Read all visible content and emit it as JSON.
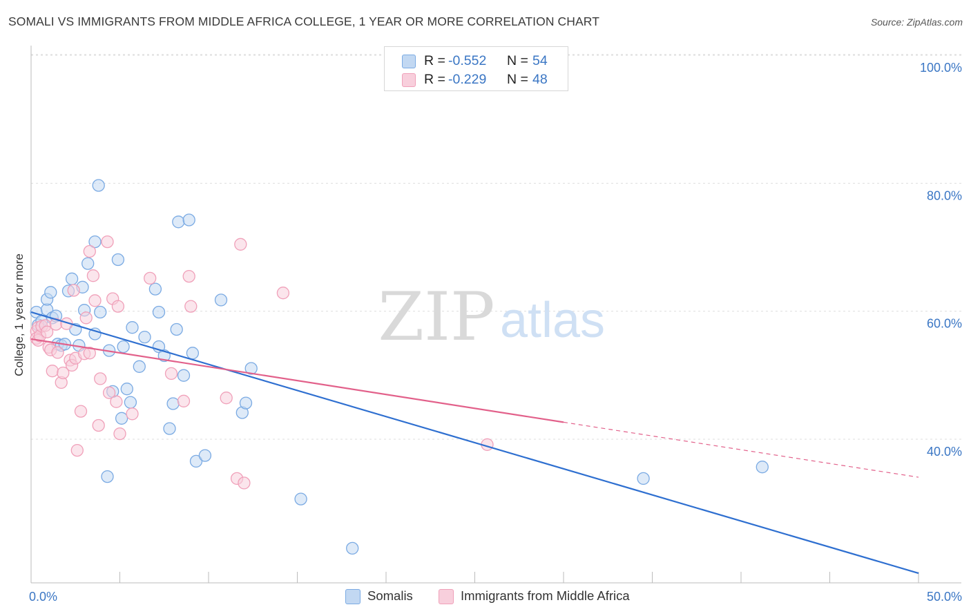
{
  "chart_data": {
    "type": "scatter",
    "title": "SOMALI VS IMMIGRANTS FROM MIDDLE AFRICA COLLEGE, 1 YEAR OR MORE CORRELATION CHART",
    "source": "Source: ZipAtlas.com",
    "watermark": {
      "zip": "ZIP",
      "atlas": "atlas"
    },
    "xlabel": "",
    "ylabel": "College, 1 year or more",
    "xlim": [
      0,
      50
    ],
    "ylim": [
      20,
      102
    ],
    "x_tick_labels": {
      "left": "0.0%",
      "right": "50.0%"
    },
    "y_ticks": [
      {
        "value": 100,
        "label": "100.0%"
      },
      {
        "value": 80,
        "label": "80.0%"
      },
      {
        "value": 60,
        "label": "60.0%"
      },
      {
        "value": 40,
        "label": "40.0%"
      }
    ],
    "legend": {
      "rows": [
        {
          "r_label": "R = ",
          "r_value": "-0.552",
          "n_label": "N = ",
          "n_value": "54"
        },
        {
          "r_label": "R = ",
          "r_value": "-0.229",
          "n_label": "N = ",
          "n_value": "48"
        }
      ]
    },
    "series": [
      {
        "name": "Somalis",
        "color": "#7aaae3",
        "fill": "#c2d8f2",
        "line_color": "#2e6fd0",
        "trend": {
          "x0": 0.0,
          "y0": 61.8,
          "x1": 50.0,
          "y1": 21.0
        },
        "points": [
          [
            0.3,
            61.8
          ],
          [
            0.4,
            59.8
          ],
          [
            0.6,
            60.4
          ],
          [
            0.9,
            62.2
          ],
          [
            0.9,
            63.8
          ],
          [
            1.1,
            64.9
          ],
          [
            1.2,
            60.9
          ],
          [
            1.4,
            61.2
          ],
          [
            1.5,
            56.8
          ],
          [
            1.7,
            56.6
          ],
          [
            1.9,
            56.8
          ],
          [
            2.1,
            65.1
          ],
          [
            2.3,
            67.0
          ],
          [
            2.5,
            59.1
          ],
          [
            2.7,
            56.6
          ],
          [
            2.9,
            65.7
          ],
          [
            3.0,
            62.1
          ],
          [
            3.2,
            69.4
          ],
          [
            3.6,
            58.4
          ],
          [
            3.6,
            72.8
          ],
          [
            3.8,
            81.6
          ],
          [
            3.9,
            61.8
          ],
          [
            4.3,
            36.1
          ],
          [
            4.4,
            55.8
          ],
          [
            4.6,
            49.4
          ],
          [
            4.9,
            70.0
          ],
          [
            5.1,
            45.2
          ],
          [
            5.2,
            56.4
          ],
          [
            5.4,
            49.8
          ],
          [
            5.6,
            47.7
          ],
          [
            5.7,
            59.4
          ],
          [
            6.1,
            53.3
          ],
          [
            6.4,
            57.9
          ],
          [
            7.0,
            65.4
          ],
          [
            7.2,
            61.8
          ],
          [
            7.2,
            56.4
          ],
          [
            7.5,
            55.0
          ],
          [
            7.8,
            43.6
          ],
          [
            8.0,
            47.5
          ],
          [
            8.2,
            59.1
          ],
          [
            8.3,
            75.9
          ],
          [
            8.6,
            51.9
          ],
          [
            8.9,
            76.2
          ],
          [
            9.1,
            55.4
          ],
          [
            9.3,
            38.5
          ],
          [
            9.8,
            39.4
          ],
          [
            10.7,
            63.7
          ],
          [
            11.9,
            46.1
          ],
          [
            12.1,
            47.6
          ],
          [
            12.4,
            53.0
          ],
          [
            15.2,
            32.6
          ],
          [
            18.1,
            24.9
          ],
          [
            34.5,
            35.8
          ],
          [
            41.2,
            37.6
          ]
        ]
      },
      {
        "name": "Immigrants from Middle Africa",
        "color": "#f0a0b9",
        "fill": "#f8cfdc",
        "line_color": "#e2608a",
        "trend": {
          "x0": 0.0,
          "y0": 57.6,
          "x1": 30.0,
          "y1": 44.6
        },
        "trend_dashed": {
          "x0": 30.0,
          "y0": 44.6,
          "x1": 50.0,
          "y1": 36.0
        },
        "points": [
          [
            0.3,
            58.8
          ],
          [
            0.3,
            57.7
          ],
          [
            0.4,
            59.4
          ],
          [
            0.4,
            57.4
          ],
          [
            0.5,
            58.1
          ],
          [
            0.6,
            59.6
          ],
          [
            0.8,
            59.7
          ],
          [
            0.9,
            58.7
          ],
          [
            1.0,
            56.3
          ],
          [
            1.1,
            55.9
          ],
          [
            1.2,
            52.6
          ],
          [
            1.4,
            59.9
          ],
          [
            1.5,
            55.5
          ],
          [
            1.7,
            50.8
          ],
          [
            1.8,
            52.3
          ],
          [
            2.0,
            60.0
          ],
          [
            2.2,
            54.3
          ],
          [
            2.3,
            53.5
          ],
          [
            2.4,
            65.2
          ],
          [
            2.5,
            54.6
          ],
          [
            2.8,
            46.3
          ],
          [
            2.6,
            40.2
          ],
          [
            3.0,
            55.3
          ],
          [
            3.1,
            60.9
          ],
          [
            3.3,
            71.3
          ],
          [
            3.3,
            55.4
          ],
          [
            3.5,
            67.5
          ],
          [
            3.6,
            63.6
          ],
          [
            3.8,
            44.1
          ],
          [
            3.9,
            51.4
          ],
          [
            4.3,
            72.8
          ],
          [
            4.4,
            49.2
          ],
          [
            4.6,
            63.9
          ],
          [
            4.8,
            47.8
          ],
          [
            4.9,
            62.7
          ],
          [
            5.0,
            42.8
          ],
          [
            5.7,
            45.9
          ],
          [
            6.7,
            67.1
          ],
          [
            7.9,
            52.2
          ],
          [
            8.6,
            47.9
          ],
          [
            8.9,
            67.4
          ],
          [
            9.0,
            62.7
          ],
          [
            11.0,
            48.4
          ],
          [
            11.6,
            35.8
          ],
          [
            11.8,
            72.4
          ],
          [
            12.0,
            35.1
          ],
          [
            14.2,
            64.8
          ],
          [
            25.7,
            41.1
          ]
        ]
      }
    ]
  }
}
